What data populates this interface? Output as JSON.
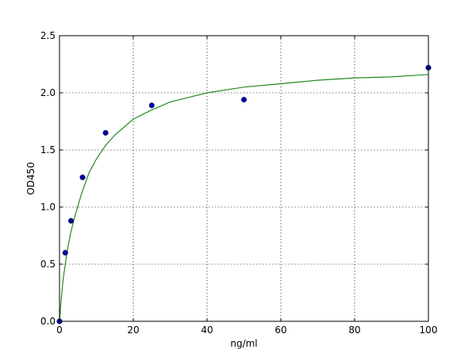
{
  "chart_data": {
    "type": "scatter",
    "title": "",
    "xlabel": "ng/ml",
    "ylabel": "OD450",
    "xlim": [
      0,
      100
    ],
    "ylim": [
      0,
      2.5
    ],
    "grid": true,
    "x_ticks": [
      "0",
      "20",
      "40",
      "60",
      "80",
      "100"
    ],
    "y_ticks": [
      "0.0",
      "0.5",
      "1.0",
      "1.5",
      "2.0",
      "2.5"
    ],
    "series": [
      {
        "kind": "points",
        "color": "#0000aa",
        "x": [
          0,
          1.56,
          3.12,
          6.25,
          12.5,
          25,
          50,
          100
        ],
        "y": [
          0.0,
          0.6,
          0.88,
          1.26,
          1.65,
          1.89,
          1.94,
          2.22
        ]
      },
      {
        "kind": "fit-curve",
        "color": "#228b22",
        "x": [
          0,
          0.5,
          1,
          2,
          3,
          4,
          6,
          8,
          10,
          12.5,
          15,
          20,
          25,
          30,
          40,
          50,
          60,
          70,
          80,
          90,
          100
        ],
        "y": [
          0.0,
          0.21,
          0.37,
          0.6,
          0.77,
          0.9,
          1.12,
          1.3,
          1.42,
          1.54,
          1.63,
          1.77,
          1.85,
          1.92,
          2.0,
          2.05,
          2.08,
          2.11,
          2.13,
          2.14,
          2.16
        ]
      }
    ]
  }
}
